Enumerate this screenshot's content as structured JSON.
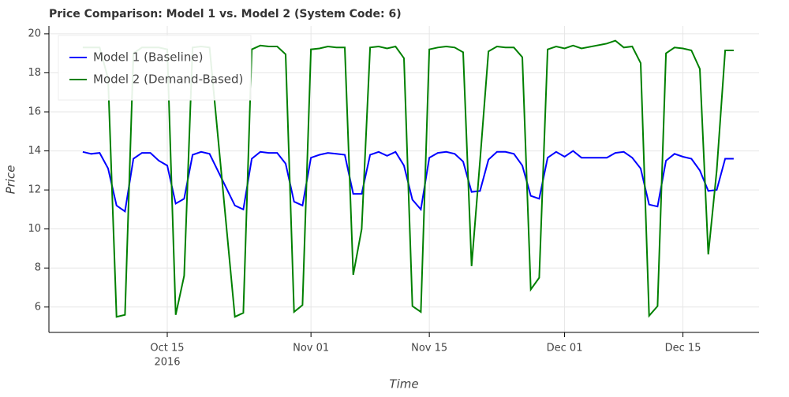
{
  "chart_data": {
    "type": "line",
    "title": "Price Comparison: Model 1 vs. Model 2 (System Code: 6)",
    "x_label": "Time",
    "y_label": "Price",
    "x": [
      "2016-10-05",
      "2016-10-06",
      "2016-10-07",
      "2016-10-08",
      "2016-10-09",
      "2016-10-10",
      "2016-10-11",
      "2016-10-12",
      "2016-10-13",
      "2016-10-14",
      "2016-10-15",
      "2016-10-16",
      "2016-10-17",
      "2016-10-18",
      "2016-10-19",
      "2016-10-20",
      "2016-10-23",
      "2016-10-24",
      "2016-10-25",
      "2016-10-26",
      "2016-10-27",
      "2016-10-28",
      "2016-10-29",
      "2016-10-30",
      "2016-10-31",
      "2016-11-01",
      "2016-11-02",
      "2016-11-03",
      "2016-11-04",
      "2016-11-05",
      "2016-11-06",
      "2016-11-07",
      "2016-11-08",
      "2016-11-09",
      "2016-11-10",
      "2016-11-11",
      "2016-11-12",
      "2016-11-13",
      "2016-11-14",
      "2016-11-15",
      "2016-11-16",
      "2016-11-17",
      "2016-11-18",
      "2016-11-19",
      "2016-11-20",
      "2016-11-21",
      "2016-11-22",
      "2016-11-23",
      "2016-11-24",
      "2016-11-25",
      "2016-11-26",
      "2016-11-27",
      "2016-11-28",
      "2016-11-29",
      "2016-11-30",
      "2016-12-01",
      "2016-12-02",
      "2016-12-03",
      "2016-12-06",
      "2016-12-07",
      "2016-12-08",
      "2016-12-09",
      "2016-12-10",
      "2016-12-11",
      "2016-12-12",
      "2016-12-13",
      "2016-12-14",
      "2016-12-15",
      "2016-12-16",
      "2016-12-17",
      "2016-12-18",
      "2016-12-19",
      "2016-12-20",
      "2016-12-21"
    ],
    "series": [
      {
        "name": "Model 1 (Baseline)",
        "color": "#0000ff",
        "values": [
          13.95,
          13.85,
          13.9,
          13.1,
          11.2,
          10.9,
          13.6,
          13.9,
          13.9,
          13.5,
          13.25,
          11.3,
          11.55,
          13.8,
          13.95,
          13.85,
          11.2,
          11.0,
          13.6,
          13.95,
          13.9,
          13.9,
          13.35,
          11.4,
          11.2,
          13.65,
          13.8,
          13.9,
          13.85,
          13.8,
          11.8,
          11.8,
          13.8,
          13.95,
          13.75,
          13.95,
          13.25,
          11.5,
          11.0,
          13.65,
          13.9,
          13.95,
          13.85,
          13.45,
          11.9,
          11.95,
          13.55,
          13.95,
          13.95,
          13.85,
          13.25,
          11.7,
          11.55,
          13.65,
          13.95,
          13.7,
          14.0,
          13.65,
          13.65,
          13.9,
          13.95,
          13.65,
          13.1,
          11.25,
          11.15,
          13.5,
          13.85,
          13.7,
          13.6,
          13.0,
          11.95,
          12.0,
          13.6,
          13.6
        ]
      },
      {
        "name": "Model 2 (Demand-Based)",
        "color": "#008000",
        "values": [
          19.3,
          19.3,
          19.3,
          17.7,
          5.5,
          5.6,
          19.0,
          19.3,
          19.3,
          19.3,
          19.2,
          5.6,
          7.6,
          19.3,
          19.35,
          19.3,
          5.5,
          5.7,
          19.2,
          19.4,
          19.35,
          19.35,
          18.95,
          5.75,
          6.1,
          19.2,
          19.25,
          19.35,
          19.3,
          19.3,
          7.65,
          10.0,
          19.3,
          19.35,
          19.25,
          19.35,
          18.75,
          6.05,
          5.75,
          19.2,
          19.3,
          19.35,
          19.3,
          19.05,
          8.1,
          13.5,
          19.1,
          19.35,
          19.3,
          19.3,
          18.8,
          6.9,
          7.5,
          19.2,
          19.35,
          19.25,
          19.4,
          19.25,
          19.5,
          19.65,
          19.3,
          19.35,
          18.5,
          5.55,
          6.05,
          19.0,
          19.3,
          19.25,
          19.15,
          18.2,
          8.7,
          13.0,
          19.15,
          19.15
        ]
      }
    ],
    "xlim": [
      "2016-10-01",
      "2016-12-24"
    ],
    "xticks": [
      {
        "value": "2016-10-15",
        "label": "Oct 15"
      },
      {
        "value": "2016-11-01",
        "label": "Nov 01"
      },
      {
        "value": "2016-11-15",
        "label": "Nov 15"
      },
      {
        "value": "2016-12-01",
        "label": "Dec 01"
      },
      {
        "value": "2016-12-15",
        "label": "Dec 15"
      }
    ],
    "x_year_label": "2016",
    "ylim": [
      4.7,
      20.4
    ],
    "yticks": [
      6,
      8,
      10,
      12,
      14,
      16,
      18,
      20
    ],
    "grid": true,
    "legend": "top-left"
  }
}
